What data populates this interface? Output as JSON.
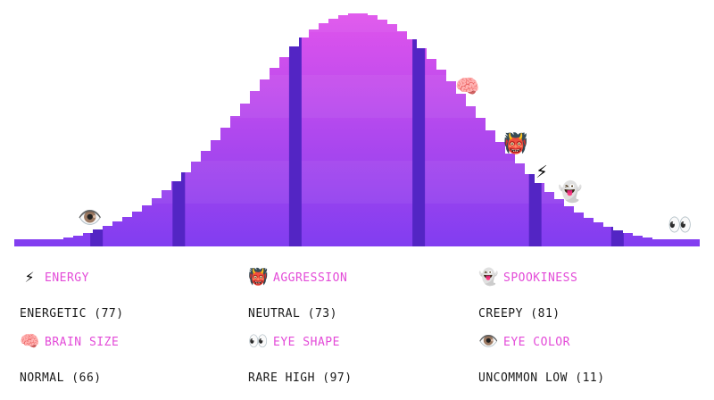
{
  "colors": {
    "top": "#e655ec",
    "bottom": "#7c3cf0",
    "divider": "#5325c4"
  },
  "markers": [
    {
      "icon": "eye-icon",
      "glyph": "👁️",
      "trait": "eye-color",
      "percentile": 11
    },
    {
      "icon": "brain-icon",
      "glyph": "🧠",
      "trait": "brain-size",
      "percentile": 66
    },
    {
      "icon": "ogre-icon",
      "glyph": "👹",
      "trait": "aggression",
      "percentile": 73
    },
    {
      "icon": "lightning-icon",
      "glyph": "⚡",
      "trait": "energy",
      "percentile": 77
    },
    {
      "icon": "ghost-icon",
      "glyph": "👻",
      "trait": "spookiness",
      "percentile": 81
    },
    {
      "icon": "eyes-icon",
      "glyph": "👀",
      "trait": "eye-shape",
      "percentile": 97
    }
  ],
  "stats": [
    {
      "key": "energy",
      "icon": "lightning-icon",
      "glyph": "⚡",
      "label": "ENERGY",
      "value": "ENERGETIC (77)"
    },
    {
      "key": "aggression",
      "icon": "ogre-icon",
      "glyph": "👹",
      "label": "AGGRESSION",
      "value": "NEUTRAL (73)"
    },
    {
      "key": "spookiness",
      "icon": "ghost-icon",
      "glyph": "👻",
      "label": "SPOOKINESS",
      "value": "CREEPY (81)"
    },
    {
      "key": "brain-size",
      "icon": "brain-icon",
      "glyph": "🧠",
      "label": "BRAIN SIZE",
      "value": "NORMAL (66)"
    },
    {
      "key": "eye-shape",
      "icon": "eyes-icon",
      "glyph": "👀",
      "label": "EYE SHAPE",
      "value": "RARE HIGH (97)"
    },
    {
      "key": "eye-color",
      "icon": "eye-icon",
      "glyph": "👁️",
      "label": "EYE COLOR",
      "value": "UNCOMMON LOW (11)"
    }
  ]
}
